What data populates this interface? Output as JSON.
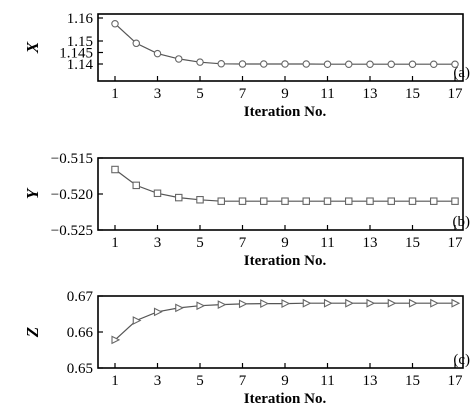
{
  "chart_data": [
    {
      "type": "line",
      "tag": "(a)",
      "ylabel": "X",
      "xlabel": "Iteration No.",
      "marker": "circle",
      "xlim": [
        0,
        17
      ],
      "ylim": [
        1.135,
        1.16
      ],
      "xticks": [
        "1",
        "3",
        "5",
        "7",
        "9",
        "11",
        "13",
        "15",
        "17"
      ],
      "yticks": [
        "1.14",
        "1.145",
        "1.15",
        "1.16"
      ],
      "x": [
        1,
        2,
        3,
        4,
        5,
        6,
        7,
        8,
        9,
        10,
        11,
        12,
        13,
        14,
        15,
        16,
        17
      ],
      "values": [
        1.1575,
        1.149,
        1.1445,
        1.1422,
        1.1408,
        1.1401,
        1.14,
        1.14,
        1.14,
        1.14,
        1.1399,
        1.1399,
        1.1399,
        1.1399,
        1.1399,
        1.1399,
        1.1399
      ],
      "grid": false
    },
    {
      "type": "line",
      "tag": "(b)",
      "ylabel": "Y",
      "xlabel": "Iteration No.",
      "marker": "square",
      "xlim": [
        0,
        17
      ],
      "ylim": [
        -0.525,
        -0.515
      ],
      "xticks": [
        "1",
        "3",
        "5",
        "7",
        "9",
        "11",
        "13",
        "15",
        "17"
      ],
      "yticks": [
        "−0.515",
        "−0.520",
        "−0.525"
      ],
      "x": [
        1,
        2,
        3,
        4,
        5,
        6,
        7,
        8,
        9,
        10,
        11,
        12,
        13,
        14,
        15,
        16,
        17
      ],
      "values": [
        -0.5166,
        -0.5188,
        -0.5199,
        -0.5205,
        -0.5208,
        -0.521,
        -0.521,
        -0.521,
        -0.521,
        -0.521,
        -0.521,
        -0.521,
        -0.521,
        -0.521,
        -0.521,
        -0.521,
        -0.521
      ],
      "grid": false
    },
    {
      "type": "line",
      "tag": "(c)",
      "ylabel": "Z",
      "xlabel": "Iteration No.",
      "marker": "triangle-right",
      "xlim": [
        0,
        17
      ],
      "ylim": [
        0.65,
        0.67
      ],
      "xticks": [
        "1",
        "3",
        "5",
        "7",
        "9",
        "11",
        "13",
        "15",
        "17"
      ],
      "yticks": [
        "0.67",
        "0.66",
        "0.65"
      ],
      "x": [
        1,
        2,
        3,
        4,
        5,
        6,
        7,
        8,
        9,
        10,
        11,
        12,
        13,
        14,
        15,
        16,
        17
      ],
      "values": [
        0.6578,
        0.6632,
        0.6656,
        0.6667,
        0.6673,
        0.6676,
        0.6678,
        0.6679,
        0.6679,
        0.668,
        0.668,
        0.668,
        0.668,
        0.668,
        0.668,
        0.668,
        0.668
      ],
      "grid": false
    }
  ]
}
